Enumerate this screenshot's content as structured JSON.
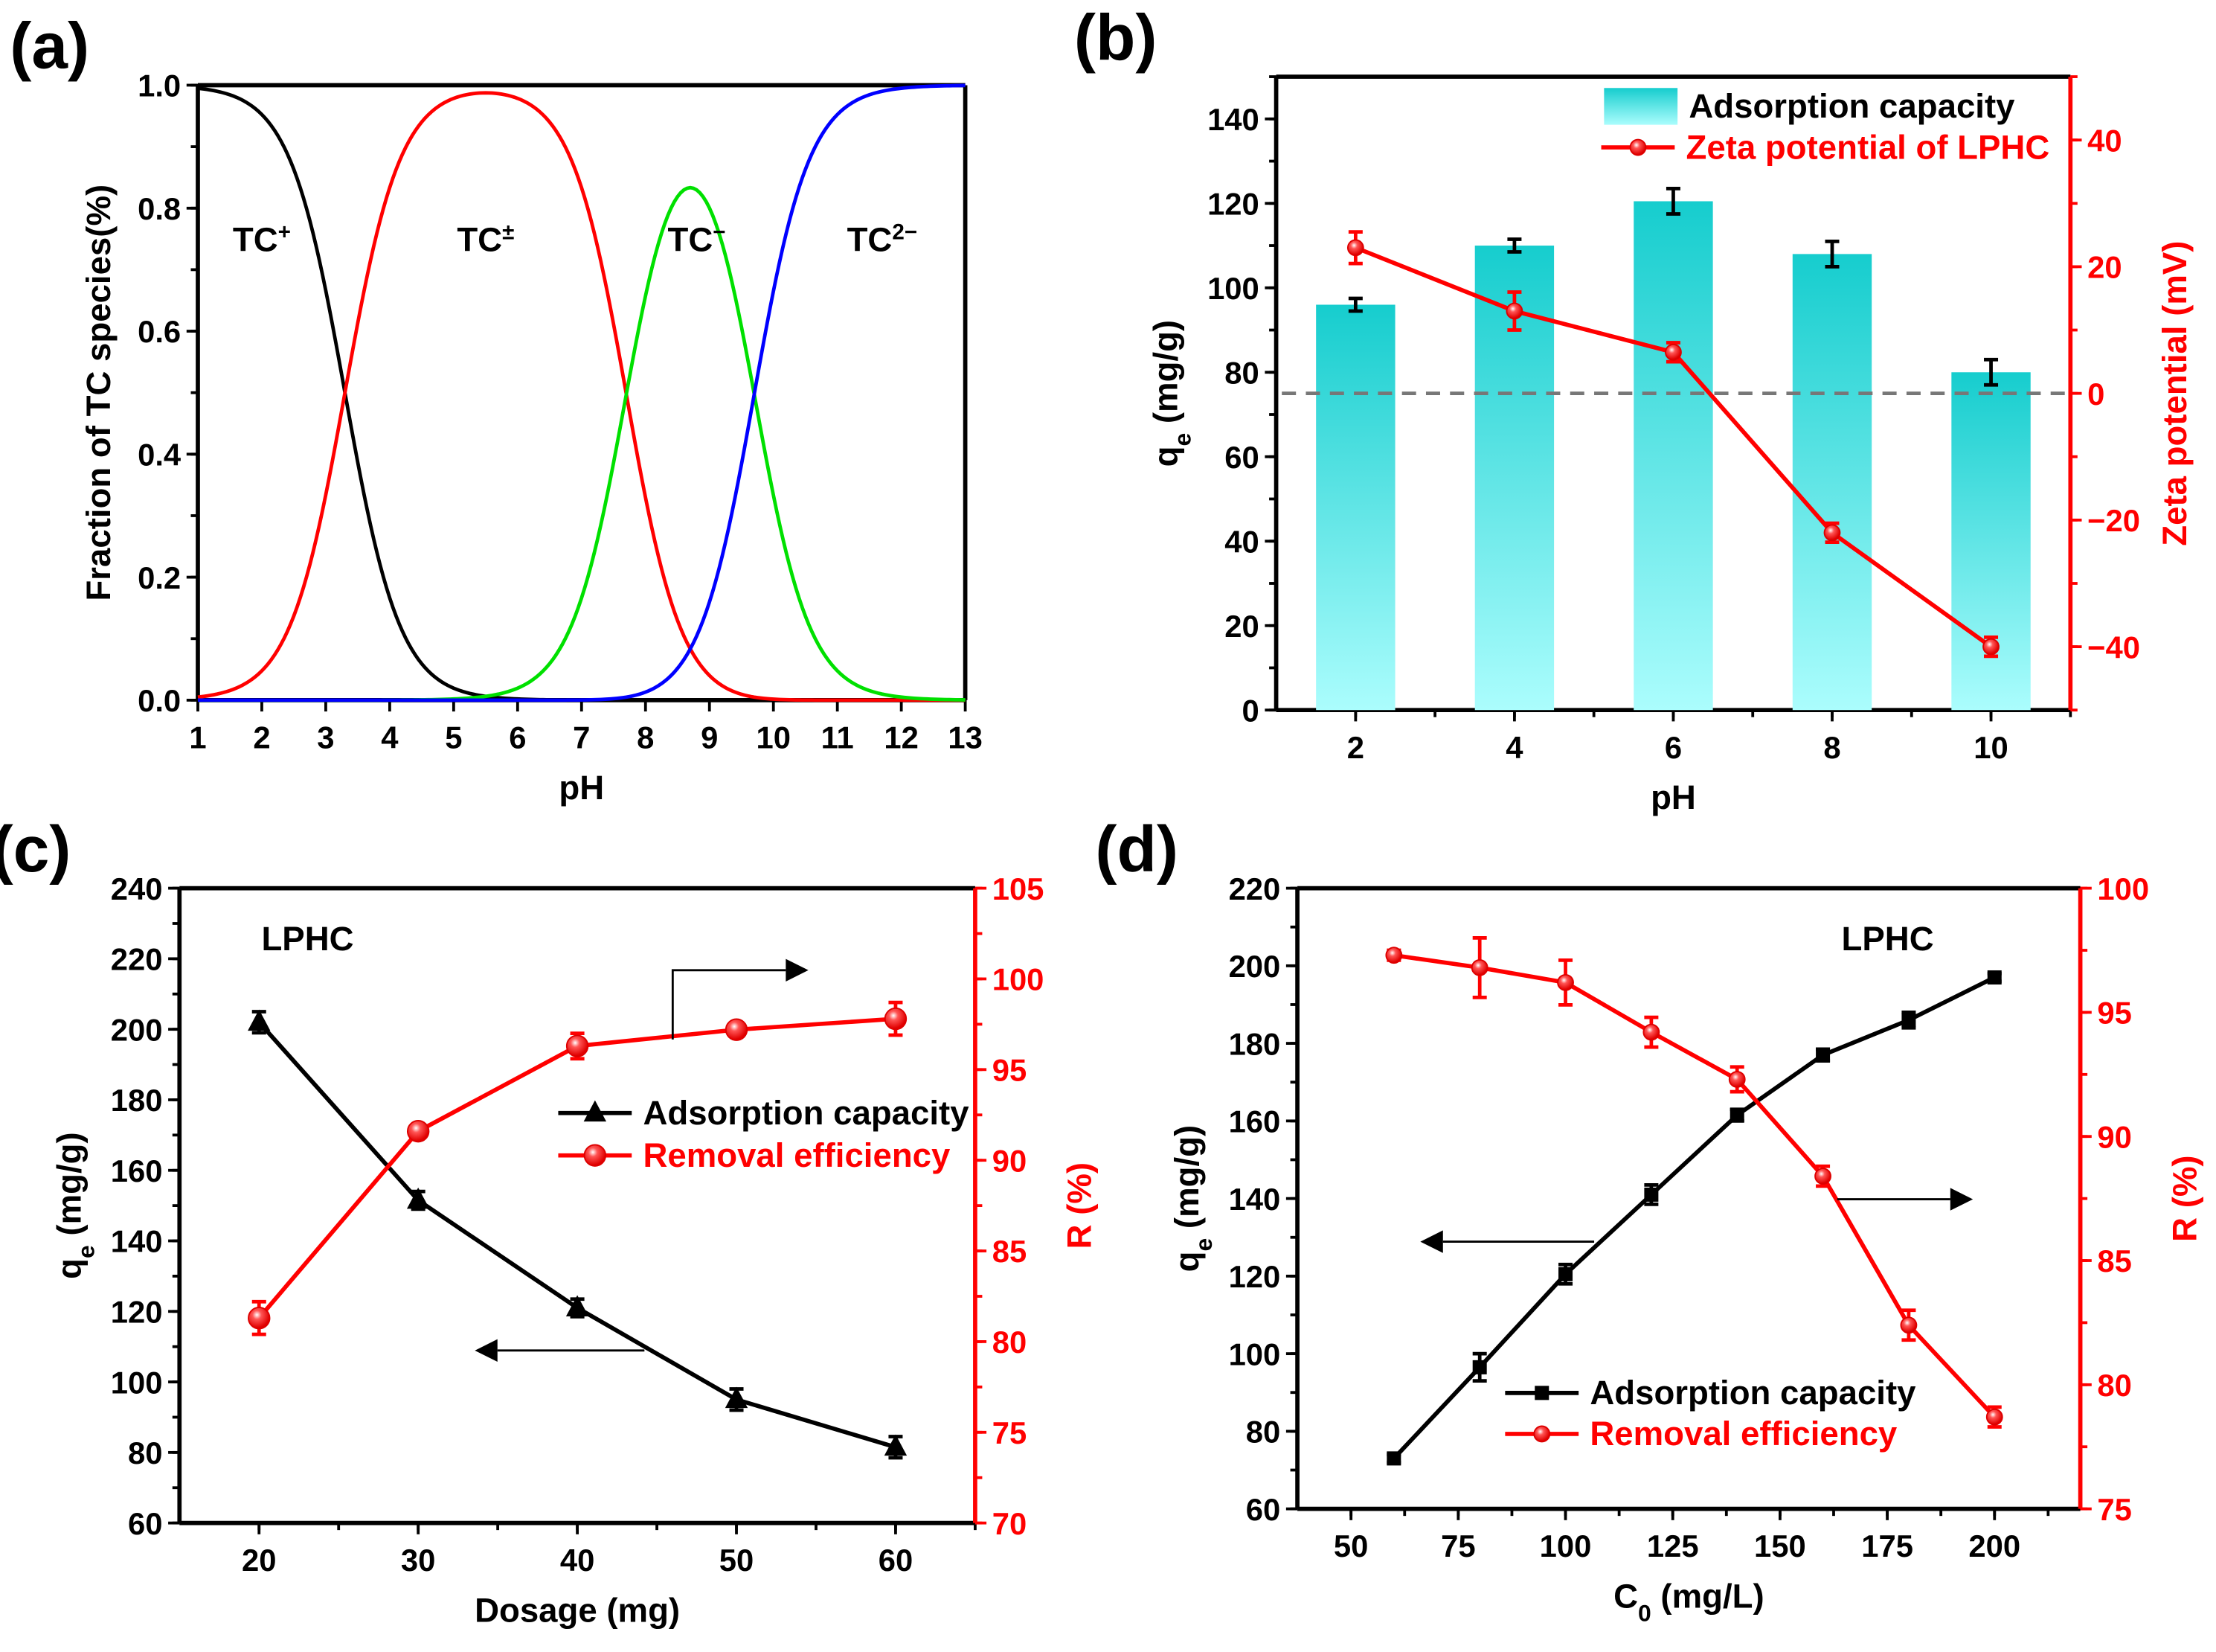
{
  "chart_data": [
    {
      "id": "a",
      "panel_label": "(a)",
      "type": "line",
      "xlabel": [
        {
          "t": "pH"
        }
      ],
      "ylabel": [
        {
          "t": "Fraction of TC species(%)"
        }
      ],
      "xlim": [
        1,
        13
      ],
      "ylim": [
        0,
        1
      ],
      "xticks": [
        1,
        2,
        3,
        4,
        5,
        6,
        7,
        8,
        9,
        10,
        11,
        12,
        13
      ],
      "yticks": [
        "0.0",
        "0.2",
        "0.4",
        "0.6",
        "0.8",
        "1.0"
      ],
      "ytickvals": [
        0,
        0.2,
        0.4,
        0.6,
        0.8,
        1.0
      ],
      "pKa": [
        3.3,
        7.7,
        9.7
      ],
      "series": [
        {
          "name": "TC+",
          "color": "#000000"
        },
        {
          "name": "TC±",
          "color": "#ff0000"
        },
        {
          "name": "TC−",
          "color": "#00e000"
        },
        {
          "name": "TC2−",
          "color": "#0000ff"
        }
      ],
      "annotations": [
        {
          "base": "TC",
          "sup": "+",
          "x": 2.0,
          "y": 0.73
        },
        {
          "base": "TC",
          "sup": "±",
          "x": 5.5,
          "y": 0.73
        },
        {
          "base": "TC",
          "sup": "−",
          "x": 8.8,
          "y": 0.73
        },
        {
          "base": "TC",
          "sup": "2−",
          "x": 11.7,
          "y": 0.73
        }
      ]
    },
    {
      "id": "b",
      "panel_label": "(b)",
      "type": "bar",
      "xlabel": [
        {
          "t": "pH"
        }
      ],
      "ylabel": [
        {
          "t": "q"
        },
        {
          "t": "e",
          "sub": true
        },
        {
          "t": " (mg/g)"
        }
      ],
      "y2label": [
        {
          "t": "Zeta potential (mV)"
        }
      ],
      "xlim": [
        1,
        11
      ],
      "ylim": [
        0,
        150
      ],
      "y2lim": [
        -50,
        50
      ],
      "xticks": [
        2,
        4,
        6,
        8,
        10
      ],
      "yticks": [
        "0",
        "20",
        "40",
        "60",
        "80",
        "100",
        "120",
        "140"
      ],
      "ytickvals": [
        0,
        20,
        40,
        60,
        80,
        100,
        120,
        140
      ],
      "y2ticks": [
        "−40",
        "−20",
        "0",
        "20",
        "40"
      ],
      "y2tickvals": [
        -40,
        -20,
        0,
        20,
        40
      ],
      "x": [
        2,
        4,
        6,
        8,
        10
      ],
      "series": [
        {
          "name": "Adsorption capacity",
          "axis": "left",
          "values": [
            96,
            110,
            120.5,
            108,
            80
          ],
          "errors": [
            1.5,
            1.5,
            3,
            3,
            3
          ],
          "color": "#1ccfd0"
        },
        {
          "name": "Zeta potential of LPHC",
          "axis": "right",
          "values": [
            23,
            13,
            6.5,
            -22,
            -40
          ],
          "errors": [
            2.5,
            3,
            1.5,
            1.5,
            1.5
          ],
          "color": "#ff0000"
        }
      ],
      "reference_line": {
        "axis": "right",
        "value": 0,
        "color": "#777777"
      },
      "legend": "top-right"
    },
    {
      "id": "c",
      "panel_label": "(c)",
      "type": "line",
      "xlabel": [
        {
          "t": "Dosage (mg)"
        }
      ],
      "ylabel": [
        {
          "t": "q"
        },
        {
          "t": "e",
          "sub": true
        },
        {
          "t": " (mg/g)"
        }
      ],
      "y2label": [
        {
          "t": "R (%)"
        }
      ],
      "xlim": [
        15,
        65
      ],
      "ylim": [
        60,
        240
      ],
      "y2lim": [
        70,
        105
      ],
      "xticks": [
        20,
        30,
        40,
        50,
        60
      ],
      "yticks": [
        "60",
        "80",
        "100",
        "120",
        "140",
        "160",
        "180",
        "200",
        "220",
        "240"
      ],
      "ytickvals": [
        60,
        80,
        100,
        120,
        140,
        160,
        180,
        200,
        220,
        240
      ],
      "y2ticks": [
        "70",
        "75",
        "80",
        "85",
        "90",
        "95",
        "100",
        "105"
      ],
      "y2tickvals": [
        70,
        75,
        80,
        85,
        90,
        95,
        100,
        105
      ],
      "x": [
        20,
        30,
        40,
        50,
        60
      ],
      "series": [
        {
          "name": "Adsorption capacity",
          "axis": "left",
          "marker": "triangle",
          "values": [
            202,
            151.5,
            121,
            95,
            81.5
          ],
          "errors": [
            3,
            2.5,
            2.5,
            3,
            3
          ],
          "color": "#000000"
        },
        {
          "name": "Removal efficiency",
          "axis": "right",
          "marker": "circle",
          "values": [
            81.3,
            91.6,
            96.3,
            97.2,
            97.8
          ],
          "errors": [
            0.9,
            0.3,
            0.7,
            0.3,
            0.9
          ],
          "color": "#ff0000"
        }
      ],
      "text": "LPHC",
      "legend": "center-right"
    },
    {
      "id": "d",
      "panel_label": "(d)",
      "type": "line",
      "xlabel": [
        {
          "t": "C"
        },
        {
          "t": "0",
          "sub": true
        },
        {
          "t": " (mg/L)"
        }
      ],
      "ylabel": [
        {
          "t": "q"
        },
        {
          "t": "e",
          "sub": true
        },
        {
          "t": " (mg/g)"
        }
      ],
      "y2label": [
        {
          "t": "R (%)"
        }
      ],
      "xlim": [
        37.5,
        220
      ],
      "ylim": [
        60,
        220
      ],
      "y2lim": [
        75,
        100
      ],
      "xticks": [
        50,
        75,
        100,
        125,
        150,
        175,
        200
      ],
      "yticks": [
        "60",
        "80",
        "100",
        "120",
        "140",
        "160",
        "180",
        "200",
        "220"
      ],
      "ytickvals": [
        60,
        80,
        100,
        120,
        140,
        160,
        180,
        200,
        220
      ],
      "y2ticks": [
        "75",
        "80",
        "85",
        "90",
        "95",
        "100"
      ],
      "y2tickvals": [
        75,
        80,
        85,
        90,
        95,
        100
      ],
      "x": [
        60,
        80,
        100,
        120,
        140,
        160,
        180,
        200
      ],
      "series": [
        {
          "name": "Adsorption capacity",
          "axis": "left",
          "marker": "square",
          "values": [
            73,
            96.5,
            120.5,
            141,
            161.5,
            177,
            186,
            197
          ],
          "errors": [
            1,
            3.5,
            2.5,
            2.5,
            1.5,
            1.5,
            2,
            1
          ],
          "color": "#000000"
        },
        {
          "name": "Removal efficiency",
          "axis": "right",
          "marker": "circle",
          "values": [
            97.3,
            96.8,
            96.2,
            94.2,
            92.3,
            88.4,
            82.4,
            78.7
          ],
          "errors": [
            0.2,
            1.2,
            0.9,
            0.6,
            0.5,
            0.4,
            0.6,
            0.4
          ],
          "color": "#ff0000"
        }
      ],
      "text": "LPHC",
      "legend": "bottom-center"
    }
  ]
}
